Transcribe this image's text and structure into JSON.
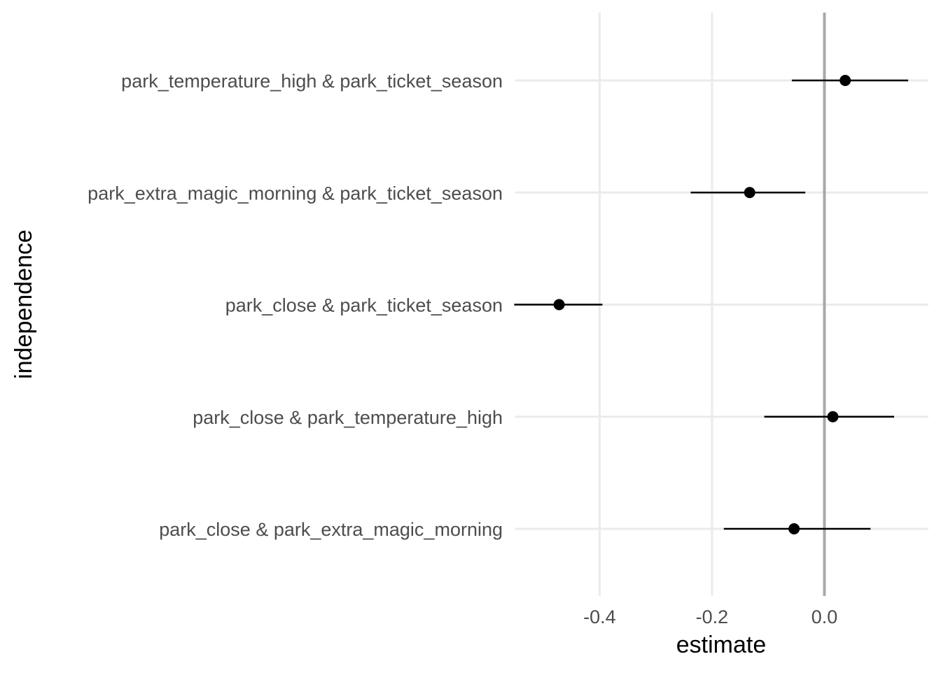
{
  "chart_data": {
    "type": "scatter",
    "subtype": "dot-and-whisker",
    "title": "",
    "xlabel": "estimate",
    "ylabel": "independence",
    "xlim": [
      -0.55,
      0.185
    ],
    "x_ticks": [
      -0.4,
      -0.2,
      0.0
    ],
    "x_tick_labels": [
      "-0.4",
      "-0.2",
      "0.0"
    ],
    "reference_line_x": 0.0,
    "grid": true,
    "legend": "none",
    "categories": [
      "park_temperature_high & park_ticket_season",
      "park_extra_magic_morning & park_ticket_season",
      "park_close & park_ticket_season",
      "park_close & park_temperature_high",
      "park_close & park_extra_magic_morning"
    ],
    "estimates": [
      0.037,
      -0.133,
      -0.472,
      0.015,
      -0.054
    ],
    "conf_low": [
      -0.058,
      -0.238,
      -0.552,
      -0.107,
      -0.179
    ],
    "conf_high": [
      0.149,
      -0.034,
      -0.395,
      0.124,
      0.082
    ],
    "colors": {
      "point": "#000000",
      "whisker": "#000000",
      "grid": "#ebebeb",
      "reference_line": "#a9a9a9",
      "tick_text": "#4d4d4d",
      "axis_title": "#000000"
    }
  }
}
